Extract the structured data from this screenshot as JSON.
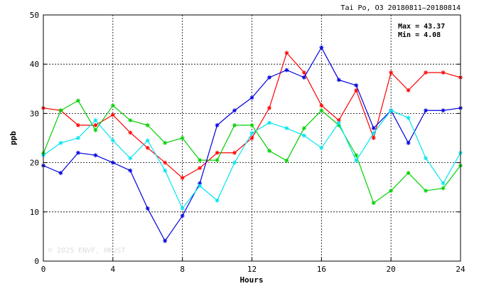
{
  "chart_data": {
    "type": "line",
    "title": "Tai Po, O3 20180811–20180814",
    "xlabel": "Hours",
    "ylabel": "ppb",
    "xlim": [
      0,
      24
    ],
    "ylim": [
      0,
      50
    ],
    "xticks": [
      0,
      4,
      8,
      12,
      16,
      20,
      24
    ],
    "yticks": [
      0,
      10,
      20,
      30,
      40,
      50
    ],
    "grid": true,
    "stats": {
      "max": "Max = 43.37",
      "min": "Min =  4.08"
    },
    "watermark": "© 2025  ENVF, HKUST",
    "x": [
      0,
      1,
      2,
      3,
      4,
      5,
      6,
      7,
      8,
      9,
      10,
      11,
      12,
      13,
      14,
      15,
      16,
      17,
      18,
      19,
      20,
      21,
      22,
      23,
      24
    ],
    "series": [
      {
        "color": "#ff0000",
        "values": [
          31.1,
          30.6,
          27.6,
          27.6,
          29.7,
          26.1,
          23.0,
          20.0,
          16.9,
          18.9,
          22.0,
          22.0,
          25.0,
          31.1,
          42.3,
          38.3,
          31.6,
          28.6,
          34.7,
          25.0,
          38.3,
          34.7,
          38.3,
          38.3,
          37.3
        ]
      },
      {
        "color": "#00d000",
        "values": [
          21.9,
          30.6,
          32.6,
          26.6,
          31.6,
          28.6,
          27.6,
          24.0,
          25.0,
          20.5,
          20.5,
          27.6,
          27.6,
          22.4,
          20.4,
          27.0,
          30.6,
          27.6,
          21.5,
          11.8,
          14.3,
          17.9,
          14.3,
          14.8,
          19.4
        ]
      },
      {
        "color": "#0000dd",
        "values": [
          19.4,
          17.9,
          22.0,
          21.5,
          20.0,
          18.4,
          10.7,
          4.1,
          9.2,
          15.8,
          27.6,
          30.6,
          33.2,
          37.3,
          38.8,
          37.3,
          43.4,
          36.8,
          35.7,
          27.0,
          30.6,
          24.0,
          30.6,
          30.6,
          31.1
        ]
      },
      {
        "color": "#00e5ee",
        "values": [
          21.5,
          24.0,
          25.0,
          28.6,
          24.5,
          20.9,
          24.5,
          18.4,
          10.7,
          15.3,
          12.3,
          20.0,
          26.0,
          28.1,
          27.0,
          25.5,
          23.0,
          28.1,
          20.4,
          26.0,
          30.6,
          29.1,
          20.9,
          15.8,
          22.0
        ]
      }
    ]
  }
}
